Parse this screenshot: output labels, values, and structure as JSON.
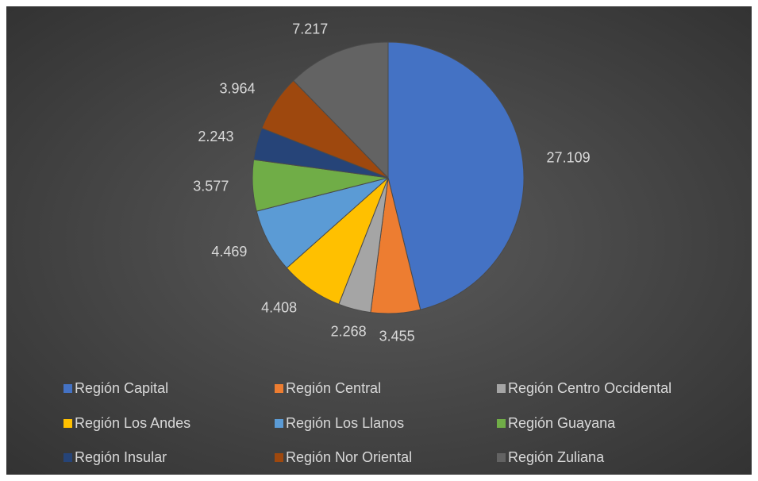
{
  "chart_data": {
    "type": "pie",
    "categories": [
      "Región Capital",
      "Región Central",
      "Región Centro Occidental",
      "Región Los Andes",
      "Región Los Llanos",
      "Región Guayana",
      "Región Insular",
      "Región Nor Oriental",
      "Región Zuliana"
    ],
    "values": [
      27109,
      3455,
      2268,
      4408,
      4469,
      3577,
      2243,
      3964,
      7217
    ],
    "value_labels": [
      "27.109",
      "3.455",
      "2.268",
      "4.408",
      "4.469",
      "3.577",
      "2.243",
      "3.964",
      "7.217"
    ],
    "colors": [
      "#4472c4",
      "#ed7d31",
      "#a5a5a5",
      "#ffc000",
      "#5b9bd5",
      "#70ad47",
      "#264478",
      "#9e480e",
      "#636363"
    ],
    "legend": "bottom"
  }
}
